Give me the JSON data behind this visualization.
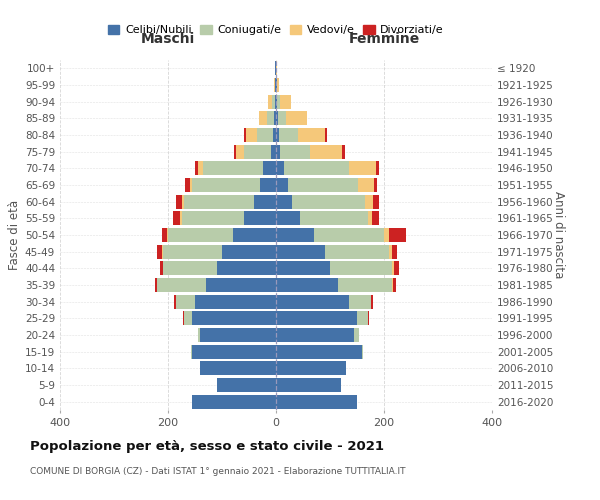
{
  "age_groups": [
    "0-4",
    "5-9",
    "10-14",
    "15-19",
    "20-24",
    "25-29",
    "30-34",
    "35-39",
    "40-44",
    "45-49",
    "50-54",
    "55-59",
    "60-64",
    "65-69",
    "70-74",
    "75-79",
    "80-84",
    "85-89",
    "90-94",
    "95-99",
    "100+"
  ],
  "birth_years": [
    "2016-2020",
    "2011-2015",
    "2006-2010",
    "2001-2005",
    "1996-2000",
    "1991-1995",
    "1986-1990",
    "1981-1985",
    "1976-1980",
    "1971-1975",
    "1966-1970",
    "1961-1965",
    "1956-1960",
    "1951-1955",
    "1946-1950",
    "1941-1945",
    "1936-1940",
    "1931-1935",
    "1926-1930",
    "1921-1925",
    "≤ 1920"
  ],
  "colors": {
    "celibe": "#4472a8",
    "coniugato": "#b8ccaa",
    "vedovo": "#f5c87a",
    "divorziato": "#cc2222"
  },
  "maschi": {
    "celibe": [
      155,
      110,
      140,
      155,
      140,
      155,
      150,
      130,
      110,
      100,
      80,
      60,
      40,
      30,
      25,
      10,
      6,
      4,
      2,
      1,
      1
    ],
    "coniugato": [
      0,
      0,
      0,
      2,
      5,
      15,
      35,
      90,
      100,
      110,
      120,
      115,
      130,
      125,
      110,
      50,
      30,
      12,
      5,
      1,
      0
    ],
    "vedovo": [
      0,
      0,
      0,
      0,
      0,
      0,
      0,
      0,
      0,
      2,
      2,
      3,
      5,
      5,
      10,
      15,
      20,
      15,
      8,
      2,
      1
    ],
    "divorziato": [
      0,
      0,
      0,
      0,
      0,
      2,
      3,
      4,
      5,
      8,
      10,
      12,
      10,
      8,
      5,
      3,
      3,
      0,
      0,
      0,
      0
    ]
  },
  "femmine": {
    "celibe": [
      150,
      120,
      130,
      160,
      145,
      150,
      135,
      115,
      100,
      90,
      70,
      45,
      30,
      22,
      15,
      8,
      5,
      3,
      2,
      1,
      0
    ],
    "coniugato": [
      0,
      0,
      0,
      2,
      8,
      20,
      40,
      100,
      115,
      120,
      130,
      125,
      135,
      130,
      120,
      55,
      35,
      15,
      6,
      1,
      0
    ],
    "vedovo": [
      0,
      0,
      0,
      0,
      0,
      0,
      0,
      2,
      3,
      5,
      10,
      8,
      15,
      30,
      50,
      60,
      50,
      40,
      20,
      3,
      1
    ],
    "divorziato": [
      0,
      0,
      0,
      0,
      0,
      3,
      5,
      5,
      10,
      10,
      30,
      12,
      10,
      5,
      5,
      4,
      4,
      0,
      0,
      0,
      0
    ]
  },
  "title": "Popolazione per età, sesso e stato civile - 2021",
  "subtitle": "COMUNE DI BORGIA (CZ) - Dati ISTAT 1° gennaio 2021 - Elaborazione TUTTITALIA.IT",
  "xlabel_left": "Maschi",
  "xlabel_right": "Femmine",
  "ylabel_left": "Fasce di età",
  "ylabel_right": "Anni di nascita",
  "xlim": 400,
  "legend_labels": [
    "Celibi/Nubili",
    "Coniugati/e",
    "Vedovi/e",
    "Divorziati/e"
  ],
  "bg_color": "#ffffff",
  "grid_color": "#cccccc",
  "bar_height": 0.85
}
